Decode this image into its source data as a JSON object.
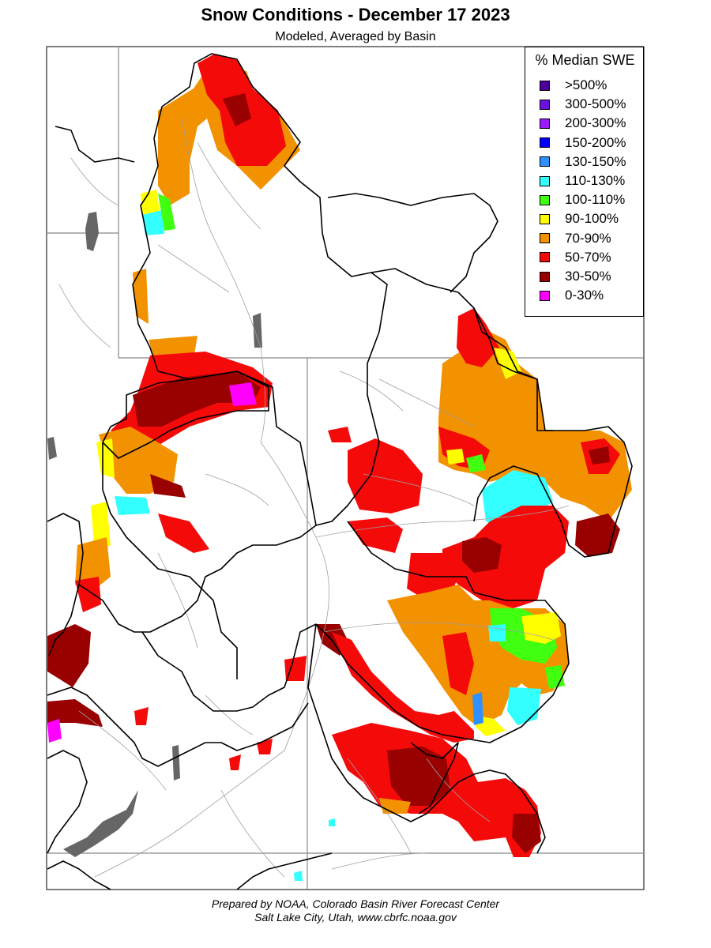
{
  "title": "Snow Conditions - December 17 2023",
  "subtitle": "Modeled, Averaged by Basin",
  "legend": {
    "title": "% Median SWE",
    "items": [
      {
        "label": ">500%",
        "color": "#4b0099"
      },
      {
        "label": "300-500%",
        "color": "#6a12e0"
      },
      {
        "label": "200-300%",
        "color": "#9b19ff"
      },
      {
        "label": "150-200%",
        "color": "#0000ff"
      },
      {
        "label": "130-150%",
        "color": "#3090ff"
      },
      {
        "label": "110-130%",
        "color": "#33ffff"
      },
      {
        "label": "100-110%",
        "color": "#40ff10"
      },
      {
        "label": "90-100%",
        "color": "#ffff00"
      },
      {
        "label": "70-90%",
        "color": "#f39200"
      },
      {
        "label": "50-70%",
        "color": "#f50a0a"
      },
      {
        "label": "30-50%",
        "color": "#990000"
      },
      {
        "label": "0-30%",
        "color": "#ff00ff"
      }
    ]
  },
  "credit": {
    "line1": "Prepared by NOAA, Colorado Basin River Forecast Center",
    "line2": "Salt Lake City, Utah, www.cbrfc.noaa.gov"
  },
  "colors": {
    "red": "#f50a0a",
    "darkred": "#990000",
    "orange": "#f39200",
    "yellow": "#ffff00",
    "cyan": "#33ffff",
    "green": "#40ff10",
    "magenta": "#ff00ff",
    "blue": "#3090ff",
    "lake": "#666666",
    "river": "#a0a0a0"
  }
}
